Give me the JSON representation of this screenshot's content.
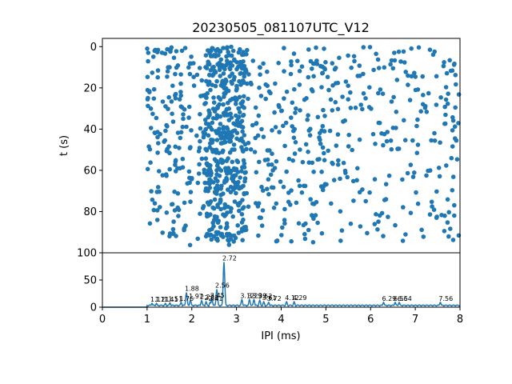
{
  "chart_data": [
    {
      "type": "scatter",
      "title": "20230505_081107UTC_V12",
      "xlabel": "",
      "ylabel": "t (s)",
      "xlim": [
        0,
        8
      ],
      "ylim": [
        100,
        -4
      ],
      "y_inverted": true,
      "yticks": [
        0,
        20,
        40,
        60,
        80,
        100
      ],
      "marker_color": "#1f77b4",
      "x_data_range": [
        1.0,
        8.0
      ],
      "t_data_range": [
        0,
        97
      ],
      "clusters": [
        {
          "x_min": 1.0,
          "x_max": 3.0,
          "t_min": 0,
          "t_max": 97,
          "density": "high"
        },
        {
          "x_min": 2.3,
          "x_max": 3.2,
          "t_min": 0,
          "t_max": 95,
          "density": "very high"
        },
        {
          "x_min": 3.0,
          "x_max": 5.0,
          "t_min": 0,
          "t_max": 95,
          "density": "medium"
        },
        {
          "x_min": 5.0,
          "x_max": 8.0,
          "t_min": 0,
          "t_max": 95,
          "density": "low"
        }
      ]
    },
    {
      "type": "line",
      "xlabel": "IPI (ms)",
      "ylabel": "",
      "xlim": [
        0,
        8
      ],
      "ylim": [
        0,
        100
      ],
      "xticks": [
        0,
        1,
        2,
        3,
        4,
        5,
        6,
        7,
        8
      ],
      "yticks": [
        0,
        50,
        100
      ],
      "line_color": "#1f77b4",
      "peaks": [
        {
          "x": 1.11,
          "y": 7,
          "label": "1.11"
        },
        {
          "x": 1.21,
          "y": 7,
          "label": "1.21"
        },
        {
          "x": 1.41,
          "y": 7,
          "label": "1.41"
        },
        {
          "x": 1.51,
          "y": 8,
          "label": "1.51"
        },
        {
          "x": 1.76,
          "y": 9,
          "label": "1.76"
        },
        {
          "x": 1.88,
          "y": 27,
          "label": "1.88"
        },
        {
          "x": 1.97,
          "y": 13,
          "label": "1.97"
        },
        {
          "x": 2.22,
          "y": 12,
          "label": "2.22"
        },
        {
          "x": 2.32,
          "y": 10,
          "label": "2.32"
        },
        {
          "x": 2.41,
          "y": 9,
          "label": "2.41"
        },
        {
          "x": 2.45,
          "y": 15,
          "label": "2.45"
        },
        {
          "x": 2.56,
          "y": 33,
          "label": "2.56"
        },
        {
          "x": 2.72,
          "y": 83,
          "label": "2.72"
        },
        {
          "x": 3.12,
          "y": 14,
          "label": "3.12"
        },
        {
          "x": 3.29,
          "y": 14,
          "label": "3.29"
        },
        {
          "x": 3.39,
          "y": 14,
          "label": "3.39"
        },
        {
          "x": 3.52,
          "y": 13,
          "label": "3.52"
        },
        {
          "x": 3.61,
          "y": 10,
          "label": "3.61"
        },
        {
          "x": 3.72,
          "y": 9,
          "label": "3.72"
        },
        {
          "x": 4.12,
          "y": 10,
          "label": "4.12"
        },
        {
          "x": 4.29,
          "y": 10,
          "label": "4.29"
        },
        {
          "x": 6.29,
          "y": 9,
          "label": "6.29"
        },
        {
          "x": 6.55,
          "y": 9,
          "label": "6.55"
        },
        {
          "x": 6.64,
          "y": 9,
          "label": "6.64"
        },
        {
          "x": 7.56,
          "y": 9,
          "label": "7.56"
        }
      ]
    }
  ]
}
